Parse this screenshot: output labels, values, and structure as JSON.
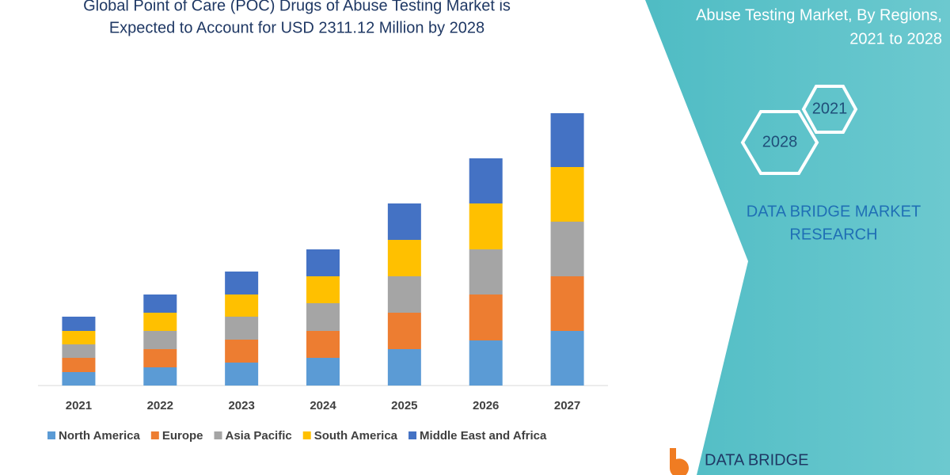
{
  "chart_data": {
    "type": "stacked_bar",
    "title_lines": [
      "Global Point of Care (POC) Drugs of Abuse Testing Market is",
      "Expected to Account for USD 2311.12 Million by 2028"
    ],
    "categories": [
      "2021",
      "2022",
      "2023",
      "2024",
      "2025",
      "2026",
      "2027"
    ],
    "series": [
      {
        "name": "North America",
        "color": "#5b9bd5",
        "values": [
          17,
          23,
          29,
          35,
          46,
          57,
          69
        ]
      },
      {
        "name": "Europe",
        "color": "#ed7d31",
        "values": [
          18,
          23,
          29,
          34,
          46,
          58,
          69
        ]
      },
      {
        "name": "Asia Pacific",
        "color": "#a5a5a5",
        "values": [
          17,
          23,
          29,
          35,
          46,
          57,
          69
        ]
      },
      {
        "name": "South America",
        "color": "#ffc000",
        "values": [
          17,
          23,
          28,
          34,
          46,
          58,
          69
        ]
      },
      {
        "name": "Middle East and Africa",
        "color": "#4472c4",
        "values": [
          18,
          23,
          29,
          34,
          46,
          57,
          68
        ]
      }
    ],
    "ylim": [
      0,
      344
    ]
  },
  "panel": {
    "subtitle_lines": [
      "Abuse Testing Market, By Regions,",
      "2021 to 2028"
    ],
    "hexagons": [
      "2021",
      "2028"
    ],
    "brand_lines": [
      "DATA BRIDGE MARKET",
      "RESEARCH"
    ]
  },
  "logo": "DATA BRIDGE"
}
